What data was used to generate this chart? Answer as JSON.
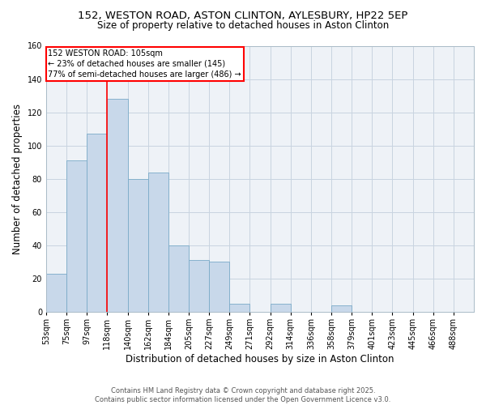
{
  "title": "152, WESTON ROAD, ASTON CLINTON, AYLESBURY, HP22 5EP",
  "subtitle": "Size of property relative to detached houses in Aston Clinton",
  "xlabel": "Distribution of detached houses by size in Aston Clinton",
  "ylabel": "Number of detached properties",
  "bar_values": [
    23,
    91,
    107,
    128,
    80,
    84,
    40,
    31,
    30,
    5,
    0,
    5,
    0,
    0,
    4,
    0,
    0,
    0,
    0,
    0,
    0
  ],
  "xtick_labels": [
    "53sqm",
    "75sqm",
    "97sqm",
    "118sqm",
    "140sqm",
    "162sqm",
    "184sqm",
    "205sqm",
    "227sqm",
    "249sqm",
    "271sqm",
    "292sqm",
    "314sqm",
    "336sqm",
    "358sqm",
    "379sqm",
    "401sqm",
    "423sqm",
    "445sqm",
    "466sqm",
    "488sqm"
  ],
  "bar_color": "#c8d8ea",
  "bar_edge_color": "#7aaac8",
  "annotation_box_text": "152 WESTON ROAD: 105sqm\n← 23% of detached houses are smaller (145)\n77% of semi-detached houses are larger (486) →",
  "annotation_box_color": "white",
  "annotation_box_edge_color": "red",
  "vline_color": "red",
  "vline_x_index": 2.5,
  "ylim": [
    0,
    160
  ],
  "yticks": [
    0,
    20,
    40,
    60,
    80,
    100,
    120,
    140,
    160
  ],
  "background_color": "#eef2f7",
  "grid_color": "#c8d4e0",
  "footer_line1": "Contains HM Land Registry data © Crown copyright and database right 2025.",
  "footer_line2": "Contains public sector information licensed under the Open Government Licence v3.0.",
  "title_fontsize": 9.5,
  "subtitle_fontsize": 8.5,
  "xlabel_fontsize": 8.5,
  "ylabel_fontsize": 8.5,
  "tick_fontsize": 7,
  "annotation_fontsize": 7,
  "footer_fontsize": 6
}
